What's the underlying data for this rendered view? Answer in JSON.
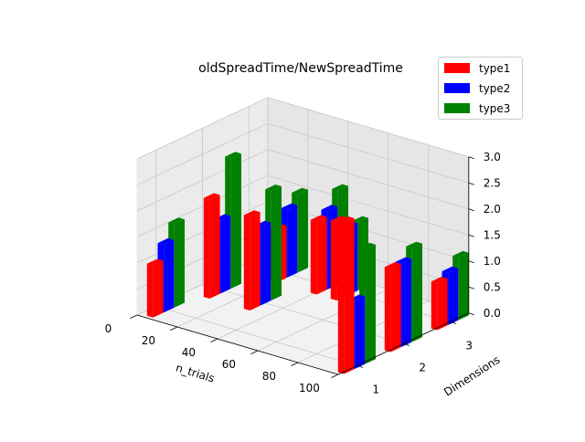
{
  "chart_data": {
    "type": "bar3d",
    "title": "oldSpreadTime/NewSpreadTime",
    "xlabel": "n_trials",
    "ylabel": "Dimensions",
    "zlabel": "",
    "xlim": [
      0,
      100
    ],
    "ylim": [
      0.6,
      3.4
    ],
    "zlim": [
      0,
      3
    ],
    "xticks": [
      "0",
      "20",
      "40",
      "60",
      "80",
      "100"
    ],
    "yticks": [
      "1",
      "2",
      "3"
    ],
    "zticks": [
      "0.0",
      "0.5",
      "1.0",
      "1.5",
      "2.0",
      "2.5",
      "3.0"
    ],
    "grid": true,
    "legend_position": "top-right",
    "series": [
      {
        "name": "type1",
        "color": "#ff0000"
      },
      {
        "name": "type2",
        "color": "#0000ff"
      },
      {
        "name": "type3",
        "color": "#008000"
      }
    ],
    "points": [
      {
        "n_trials": 5,
        "dimension": 1,
        "type1": 1.0,
        "type2": 1.3,
        "type3": 1.6
      },
      {
        "n_trials": 10,
        "dimension": 2,
        "type1": 1.9,
        "type2": 1.4,
        "type3": 2.5
      },
      {
        "n_trials": 20,
        "dimension": 3,
        "type1": 1.0,
        "type2": 1.3,
        "type3": 1.5
      },
      {
        "n_trials": 30,
        "dimension": 2,
        "type1": 1.8,
        "type2": 1.5,
        "type3": 2.1
      },
      {
        "n_trials": 40,
        "dimension": 3,
        "type1": 1.4,
        "type2": 1.5,
        "type3": 1.8
      },
      {
        "n_trials": 50,
        "dimension": 3,
        "type1": 1.5,
        "type2": 1.3,
        "type3": 1.3
      },
      {
        "n_trials": 100,
        "dimension": 1,
        "type1": 2.9,
        "type2": 1.3,
        "type3": 2.2
      },
      {
        "n_trials": 100,
        "dimension": 2,
        "type1": 1.6,
        "type2": 1.6,
        "type3": 1.8
      },
      {
        "n_trials": 100,
        "dimension": 3,
        "type1": 0.9,
        "type2": 1.0,
        "type3": 1.2
      }
    ]
  }
}
